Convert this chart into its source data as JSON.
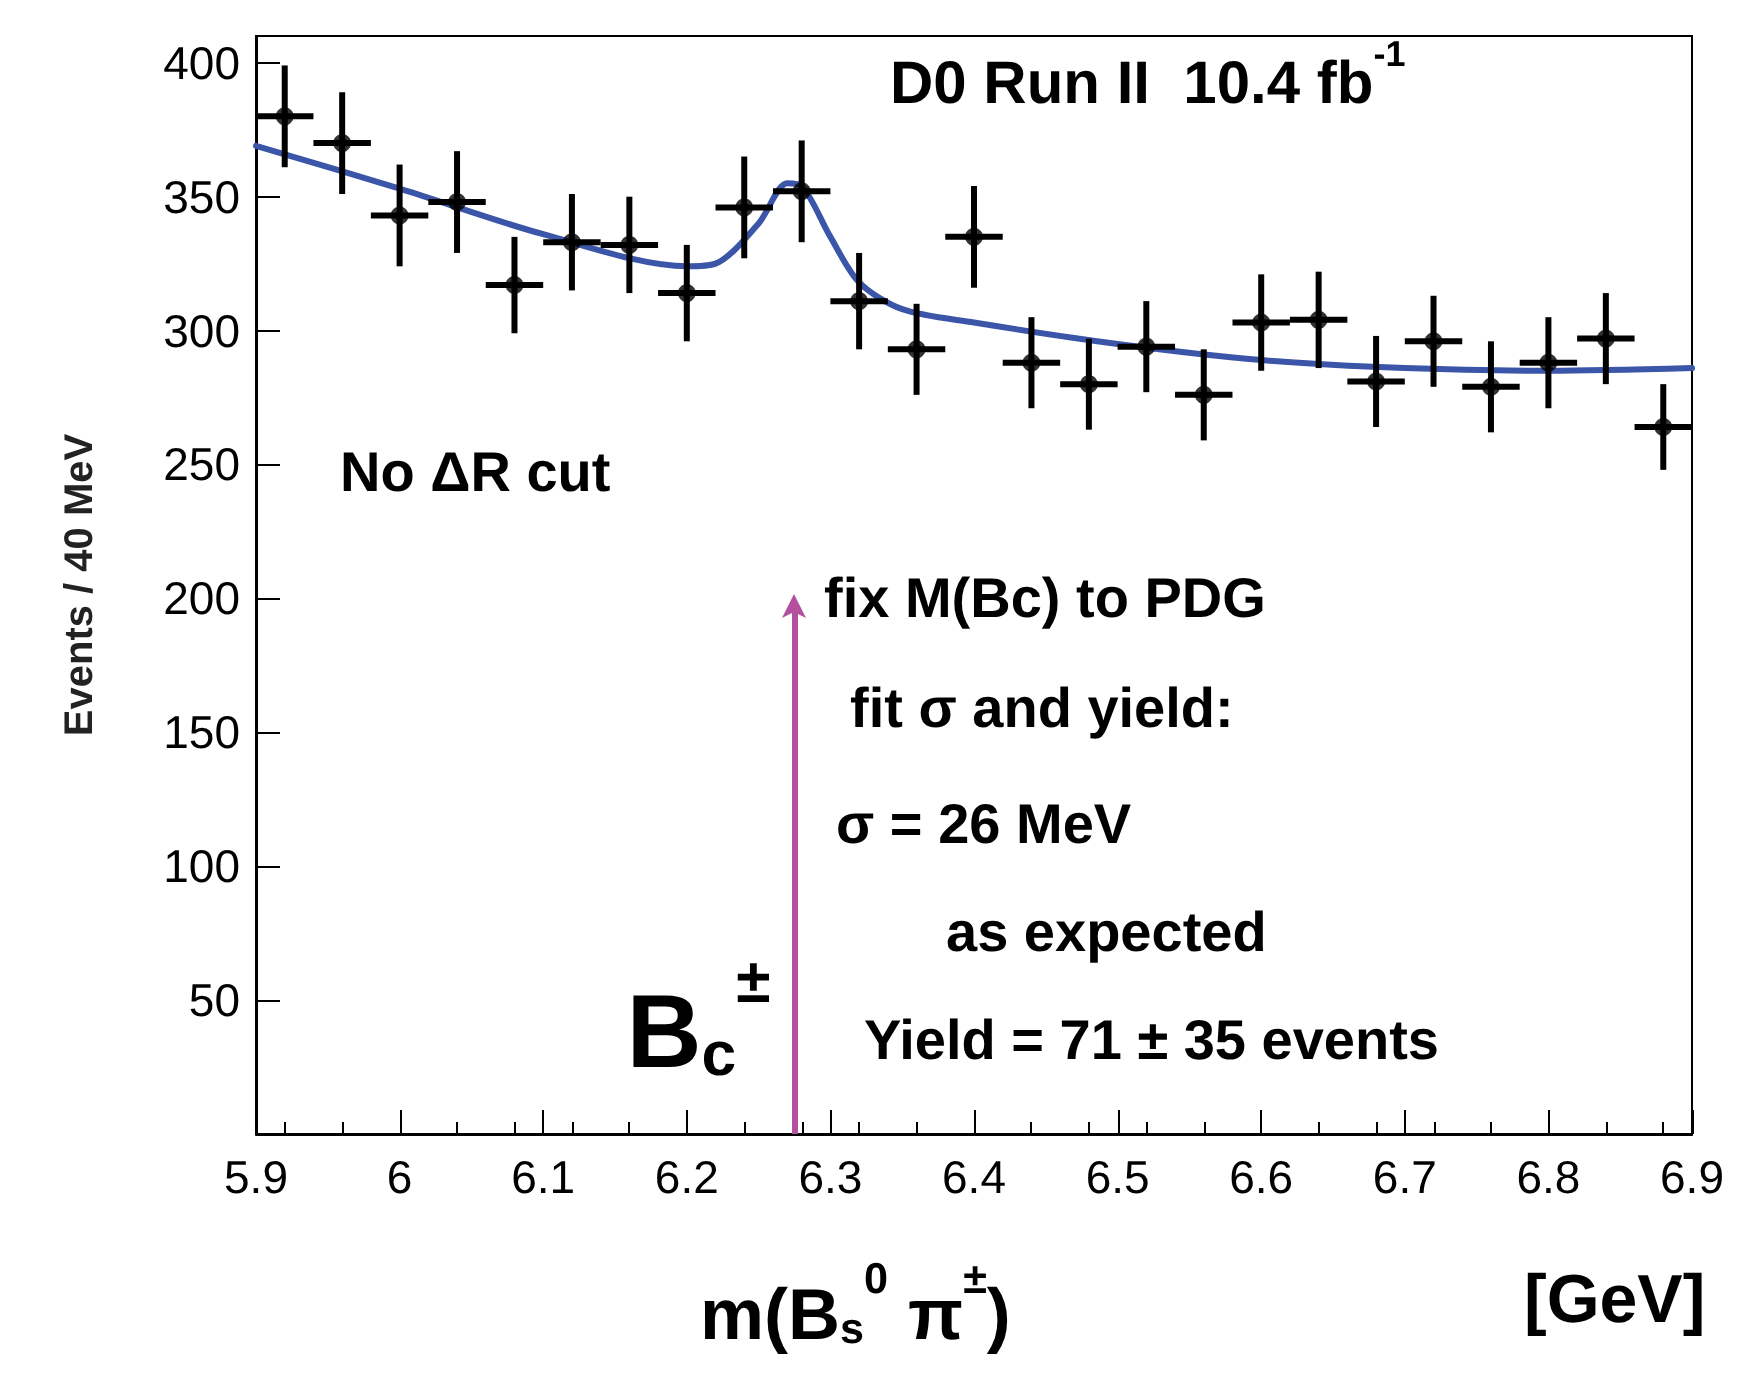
{
  "chart_data": {
    "type": "scatter",
    "xlabel": "m(B$_{s}$$^{0}$ π$^{±}$)",
    "ylabel": "Events / 40 MeV",
    "annotations": [
      "D0 Run II  10.4 fb$^{-1}$",
      "No ΔR cut",
      "fix M(Bc) to PDG",
      "fit σ and yield:",
      "σ = 26 MeV",
      "as expected",
      "Yield = 71 ± 35 events",
      "[GeV]"
    ],
    "ref_lines": [
      {
        "axis": "x",
        "value": 6.275,
        "label": "B$_{c}$$^{±}$",
        "color": "#b5509f"
      }
    ],
    "xlim": [
      5.9,
      6.9
    ],
    "xticks": [
      5.9,
      6,
      6.1,
      6.2,
      6.3,
      6.4,
      6.5,
      6.6,
      6.7,
      6.8,
      6.9
    ],
    "ylim": [
      0,
      410
    ],
    "yticks": [
      50,
      100,
      150,
      200,
      250,
      300,
      350,
      400
    ],
    "grid": false,
    "series": [
      {
        "color": "#000000",
        "marker": "circle",
        "x": [
          5.92,
          5.96,
          6.0,
          6.04,
          6.08,
          6.12,
          6.16,
          6.2,
          6.24,
          6.28,
          6.32,
          6.36,
          6.4,
          6.44,
          6.48,
          6.52,
          6.56,
          6.6,
          6.64,
          6.68,
          6.72,
          6.76,
          6.8,
          6.84,
          6.88
        ],
        "values": [
          380,
          370,
          343,
          348,
          317,
          333,
          332,
          314,
          346,
          352,
          311,
          293,
          335,
          288,
          280,
          294,
          276,
          303,
          304,
          281,
          296,
          279,
          288,
          297,
          264
        ],
        "errors": [
          19,
          19,
          19,
          19,
          18,
          18,
          18,
          18,
          19,
          19,
          18,
          17,
          19,
          17,
          17,
          17,
          17,
          18,
          18,
          17,
          17,
          17,
          17,
          17,
          16
        ],
        "xerrors": [
          0.02,
          0.02,
          0.02,
          0.02,
          0.02,
          0.02,
          0.02,
          0.02,
          0.02,
          0.02,
          0.02,
          0.02,
          0.02,
          0.02,
          0.02,
          0.02,
          0.02,
          0.02,
          0.02,
          0.02,
          0.02,
          0.02,
          0.02,
          0.02,
          0.02
        ]
      },
      {
        "type": "line",
        "color": "#3b55a8",
        "marker": "none",
        "line_style": "solid",
        "x": [
          5.9,
          6.0,
          6.1,
          6.2,
          6.22,
          6.25,
          6.27,
          6.28,
          6.3,
          6.32,
          6.35,
          6.4,
          6.5,
          6.6,
          6.7,
          6.8,
          6.9
        ],
        "values": [
          369,
          353,
          336,
          324,
          325,
          340,
          355,
          354,
          335,
          318,
          308,
          303,
          295,
          289,
          286,
          285,
          286
        ]
      }
    ]
  }
}
